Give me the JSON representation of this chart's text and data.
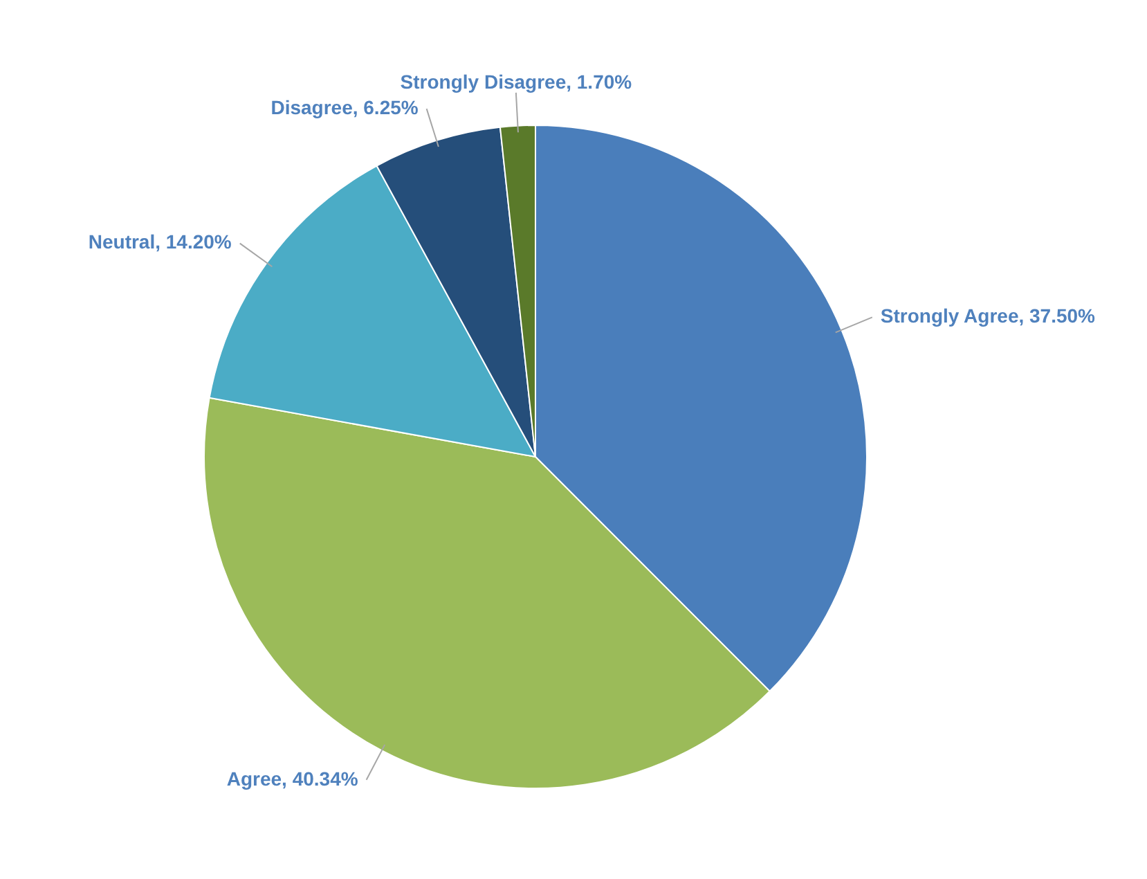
{
  "chart_data": {
    "type": "pie",
    "categories": [
      "Strongly Agree",
      "Agree",
      "Neutral",
      "Disagree",
      "Strongly Disagree"
    ],
    "values": [
      37.5,
      40.34,
      14.2,
      6.25,
      1.7
    ],
    "value_labels": [
      "37.50%",
      "40.34%",
      "14.20%",
      "6.25%",
      "1.70%"
    ],
    "colors": [
      "#4a7ebb",
      "#9bbb59",
      "#4bacc6",
      "#254e7a",
      "#5a7a2a"
    ],
    "legend": false
  }
}
